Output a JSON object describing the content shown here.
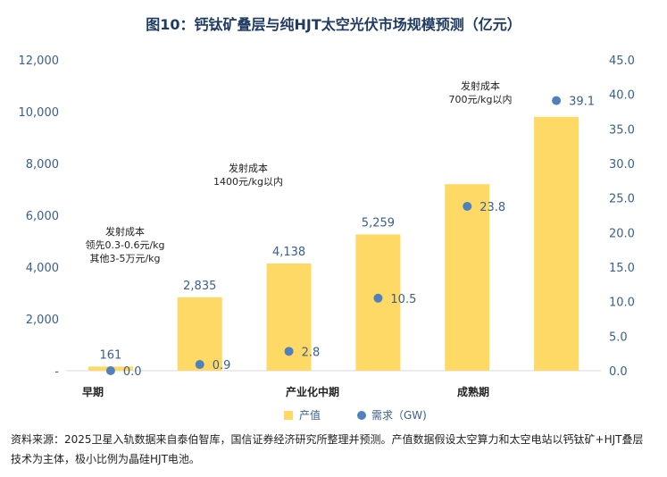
{
  "title": "图10：钙钛矿叠层与纯HJT太空光伏市场规模预测（亿元）",
  "chart_data": {
    "type": "bar+scatter",
    "periods": [
      "早期",
      "",
      "产业化中期",
      "",
      "成熟期",
      ""
    ],
    "series": [
      {
        "name": "产值",
        "kind": "bar",
        "axis": "left",
        "color": "#ffd966",
        "values": [
          161,
          2835,
          4138,
          5259,
          7200,
          9800
        ],
        "labels": [
          "161",
          "2,835",
          "4,138",
          "5,259",
          "",
          ""
        ]
      },
      {
        "name": "需求（GW)",
        "kind": "scatter",
        "axis": "right",
        "color": "#4f81bd",
        "values": [
          0.0,
          0.9,
          2.8,
          10.5,
          23.8,
          39.1
        ],
        "labels": [
          "0.0",
          "0.9",
          "2.8",
          "10.5",
          "23.8",
          "39.1"
        ]
      }
    ],
    "y_left": {
      "min": 0,
      "max": 12000,
      "step": 2000,
      "ticks": [
        "-",
        "2,000",
        "4,000",
        "6,000",
        "8,000",
        "10,000",
        "12,000"
      ]
    },
    "y_right": {
      "min": 0,
      "max": 45,
      "step": 5,
      "ticks": [
        "0.0",
        "5.0",
        "10.0",
        "15.0",
        "20.0",
        "25.0",
        "30.0",
        "35.0",
        "40.0",
        "45.0"
      ]
    },
    "annotations": [
      {
        "lines": [
          "发射成本",
          "领先0.3-0.6元/kg",
          "其他3-5万元/kg"
        ]
      },
      {
        "lines": [
          "发射成本",
          "1400元/kg以内"
        ]
      },
      {
        "lines": [
          "发射成本",
          "700元/kg以内"
        ]
      }
    ],
    "legend_position": "bottom-right"
  },
  "source": "资料来源：2025卫星入轨数据来自泰伯智库，国信证券经济研究所整理并预测。产值数据假设太空算力和太空电站以钙钛矿+HJT叠层技术为主体，极小比例为晶硅HJT电池。"
}
